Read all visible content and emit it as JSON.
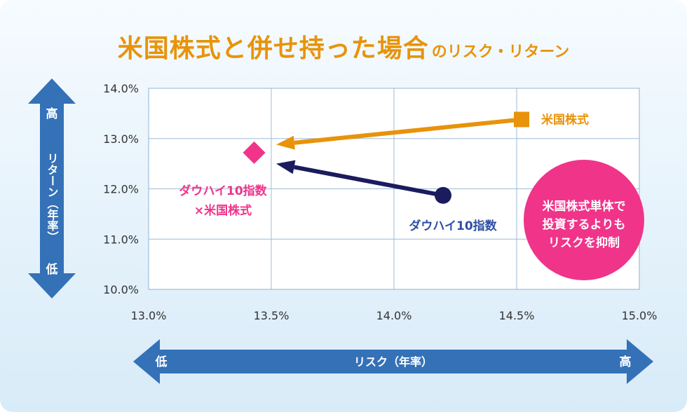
{
  "title": {
    "main": "米国株式と併せ持った場合",
    "sub": "のリスク・リターン"
  },
  "chart_data": {
    "type": "scatter",
    "xlim": [
      13.0,
      15.0
    ],
    "ylim": [
      10.0,
      14.0
    ],
    "x_ticks": [
      "13.0%",
      "13.5%",
      "14.0%",
      "14.5%",
      "15.0%"
    ],
    "y_ticks": [
      "14.0%",
      "13.0%",
      "12.0%",
      "11.0%",
      "10.0%"
    ],
    "grid": true,
    "points": [
      {
        "label": "米国株式",
        "x": 14.52,
        "y": 13.38,
        "color": "#e8930a",
        "marker": "square"
      },
      {
        "label": "ダウハイ10指数",
        "x": 14.2,
        "y": 11.87,
        "color": "#1b1b5e",
        "marker": "circle"
      },
      {
        "label_lines": [
          "ダウハイ10指数",
          "×米国株式"
        ],
        "x": 13.43,
        "y": 12.72,
        "color": "#f0348a",
        "marker": "diamond"
      }
    ],
    "arrows": [
      {
        "from": [
          14.52,
          13.38
        ],
        "to": [
          13.52,
          12.88
        ],
        "color": "#e8930a"
      },
      {
        "from": [
          14.2,
          11.87
        ],
        "to": [
          13.52,
          12.5
        ],
        "color": "#1b1b5e"
      }
    ],
    "y_axis_arrow": {
      "top": "高",
      "label": "リターン（年率）",
      "bottom": "低",
      "color": "#3471b7"
    },
    "x_axis_arrow": {
      "left": "低",
      "label": "リスク（年率）",
      "right": "高",
      "color": "#3471b7"
    },
    "callout": {
      "lines": [
        "米国株式単体で",
        "投資するよりも",
        "リスクを抑制"
      ],
      "color": "#f0348a"
    }
  }
}
